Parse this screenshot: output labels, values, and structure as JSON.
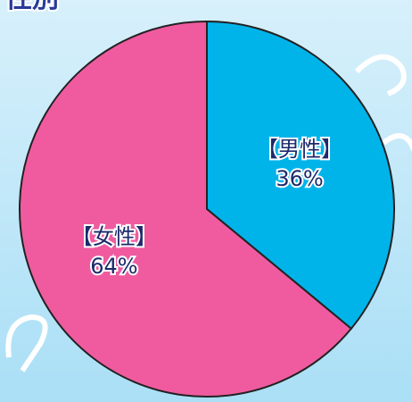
{
  "chart_data": {
    "type": "pie",
    "title": "性別",
    "categories": [
      "【男性】",
      "【女性】"
    ],
    "values": [
      36,
      64
    ],
    "value_labels": [
      "36%",
      "64%"
    ],
    "colors": [
      "#00b4ea",
      "#f05ba0"
    ]
  }
}
